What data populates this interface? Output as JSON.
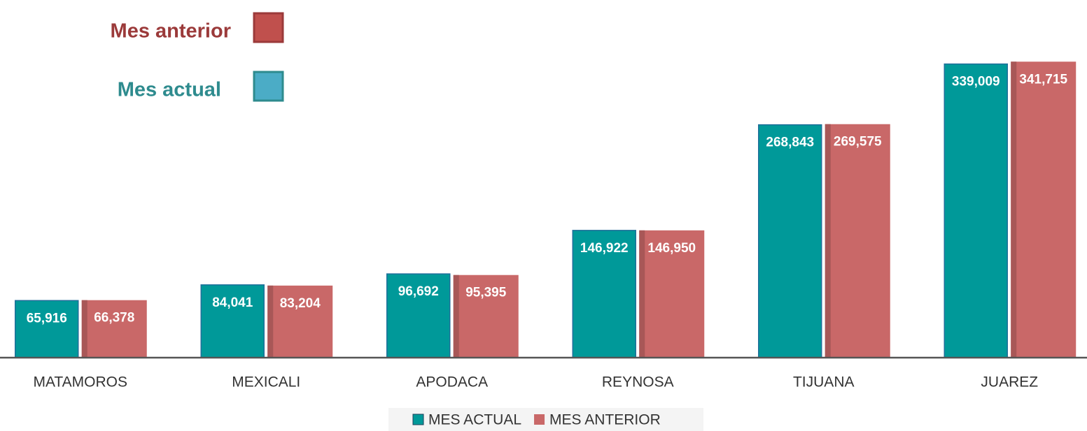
{
  "chart_data": {
    "type": "bar",
    "categories": [
      "MATAMOROS",
      "MEXICALI",
      "APODACA",
      "REYNOSA",
      "TIJUANA",
      "JUAREZ"
    ],
    "series": [
      {
        "name": "MES ACTUAL",
        "color": "#009999",
        "values": [
          65916,
          84041,
          96692,
          146922,
          268843,
          339009
        ],
        "value_labels": [
          "65,916",
          "84,041",
          "96,692",
          "146,922",
          "268,843",
          "339,009"
        ]
      },
      {
        "name": "MES ANTERIOR",
        "color": "#c96868",
        "values": [
          66378,
          83204,
          95395,
          146950,
          269575,
          341715
        ],
        "value_labels": [
          "66,378",
          "83,204",
          "95,395",
          "146,950",
          "269,575",
          "341,715"
        ]
      }
    ],
    "annotations": [
      {
        "text": "Mes anterior",
        "color": "#9b3a3a",
        "swatch": "#c0504d"
      },
      {
        "text": "Mes actual",
        "color": "#2e8b8e",
        "swatch": "#4bacc6"
      }
    ],
    "ylim": [
      0,
      400000
    ]
  }
}
